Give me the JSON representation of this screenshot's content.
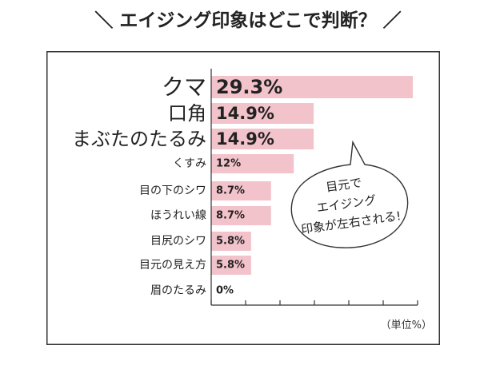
{
  "header": {
    "title": "＼ エイジング印象はどこで判断？ ／"
  },
  "chart_data": {
    "type": "bar",
    "orientation": "horizontal",
    "categories": [
      "クマ",
      "口角",
      "まぶたのたるみ",
      "くすみ",
      "目の下のシワ",
      "ほうれい線",
      "目尻のシワ",
      "目元の見え方",
      "眉のたるみ"
    ],
    "values": [
      29.3,
      14.9,
      14.9,
      12,
      8.7,
      8.7,
      5.8,
      5.8,
      0
    ],
    "value_labels": [
      "29.3%",
      "14.9%",
      "14.9%",
      "12%",
      "8.7%",
      "8.7%",
      "5.8%",
      "5.8%",
      "0%"
    ],
    "unit_note": "（単位%）",
    "xlim": [
      0,
      30
    ],
    "grid": false,
    "bar_color": "#f3c3cb"
  },
  "callout": {
    "lines": [
      "目元で",
      "エイジング",
      "印象が左右される!"
    ]
  }
}
